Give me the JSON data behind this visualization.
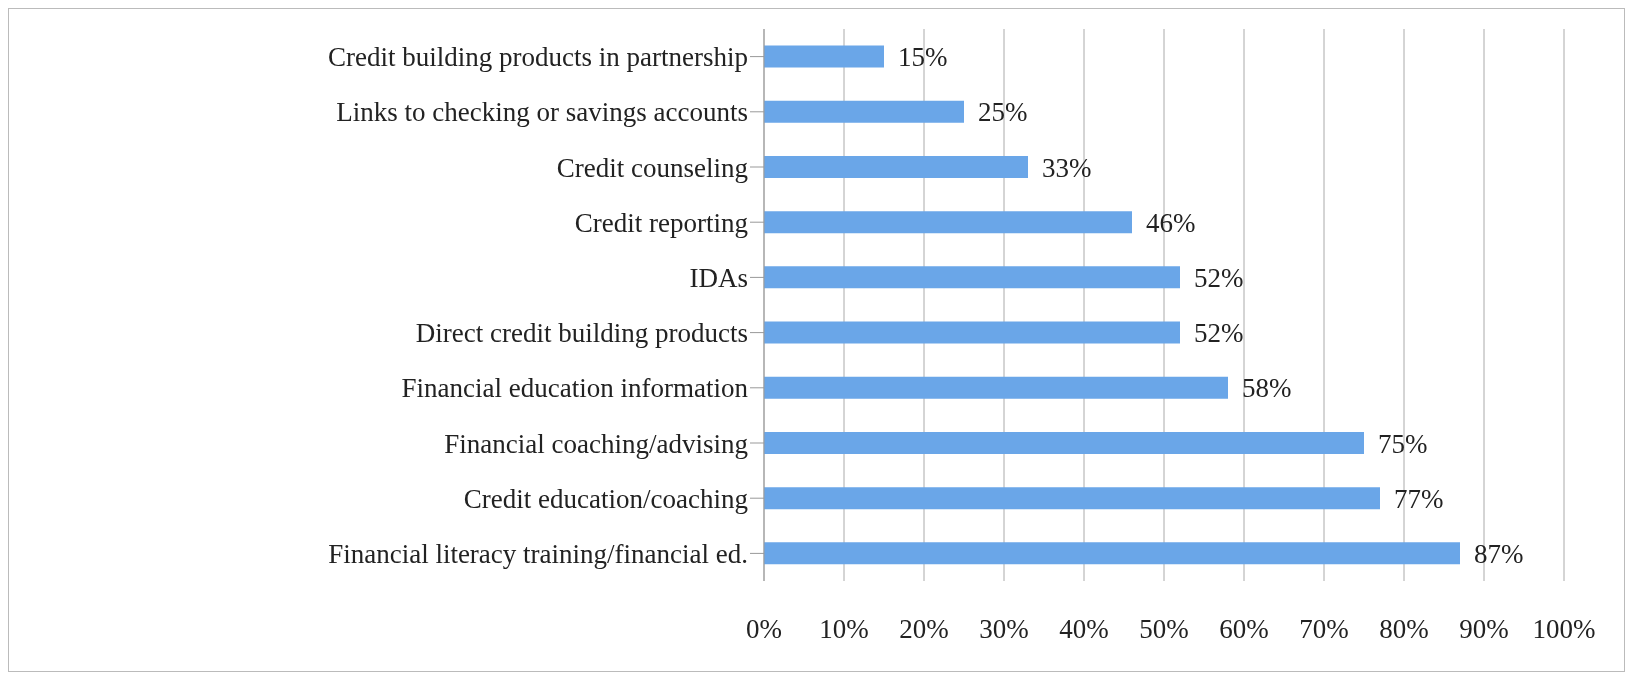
{
  "chart_data": {
    "type": "bar",
    "orientation": "horizontal",
    "categories": [
      "Credit building products in partnership",
      "Links to checking or savings accounts",
      "Credit counseling",
      "Credit reporting",
      "IDAs",
      "Direct credit building products",
      "Financial education information",
      "Financial coaching/advising",
      "Credit education/coaching",
      "Financial literacy training/financial ed."
    ],
    "values": [
      15,
      25,
      33,
      46,
      52,
      52,
      58,
      75,
      77,
      87
    ],
    "value_labels": [
      "15%",
      "25%",
      "33%",
      "46%",
      "52%",
      "52%",
      "58%",
      "75%",
      "77%",
      "87%"
    ],
    "color": "#6aa6e8",
    "xlim": [
      0,
      100
    ],
    "xticks": [
      {
        "value": 0,
        "label": "0%"
      },
      {
        "value": 10,
        "label": "10%"
      },
      {
        "value": 20,
        "label": "20%"
      },
      {
        "value": 30,
        "label": "30%"
      },
      {
        "value": 40,
        "label": "40%"
      },
      {
        "value": 50,
        "label": "50%"
      },
      {
        "value": 60,
        "label": "60%"
      },
      {
        "value": 70,
        "label": "70%"
      },
      {
        "value": 80,
        "label": "80%"
      },
      {
        "value": 90,
        "label": "90%"
      },
      {
        "value": 100,
        "label": "100%"
      }
    ],
    "grid": "x"
  }
}
